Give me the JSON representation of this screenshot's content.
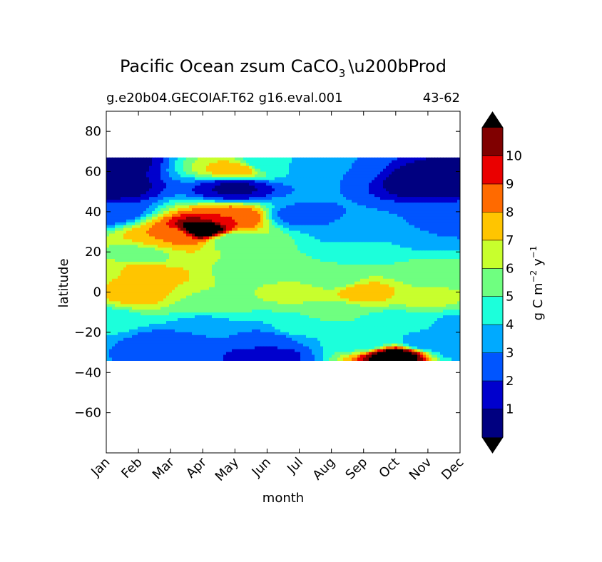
{
  "chart_data": {
    "type": "heatmap",
    "title": "Pacific Ocean zsum CaCO",
    "title_subscript": "3",
    "title_suffix": "Prod",
    "subtitle_left": "g.e20b04.GECOIAF.T62 g16.eval.001",
    "subtitle_right": "43-62",
    "xlabel": "month",
    "ylabel": "latitude",
    "x_ticks": [
      "Jan",
      "Feb",
      "Mar",
      "Apr",
      "May",
      "Jun",
      "Jul",
      "Aug",
      "Sep",
      "Oct",
      "Nov",
      "Dec"
    ],
    "y_ticks": [
      80,
      60,
      40,
      20,
      0,
      -20,
      -40,
      -60
    ],
    "y_tick_labels": [
      "80",
      "60",
      "40",
      "20",
      "0",
      "−20",
      "−40",
      "−60"
    ],
    "ylim": [
      -80,
      90
    ],
    "data_lat_range": [
      -34,
      67
    ],
    "colorbar": {
      "label_main": "g C m",
      "label_exp1": "−2",
      "label_mid": " y",
      "label_exp2": "−1",
      "levels": [
        0,
        1,
        2,
        3,
        4,
        5,
        6,
        7,
        8,
        9,
        10,
        11
      ],
      "tick_labels": [
        "1",
        "2",
        "3",
        "4",
        "5",
        "6",
        "7",
        "8",
        "9",
        "10"
      ],
      "colors": [
        "#000080",
        "#0000cd",
        "#0055ff",
        "#00aaff",
        "#1cffdb",
        "#6fff80",
        "#c8ff2d",
        "#ffc500",
        "#ff6a00",
        "#ea0000",
        "#800000"
      ],
      "extend_low_color": "#000000",
      "extend_high_color": "#000000"
    },
    "field_nodes": [
      {
        "x": 0,
        "lat": 65,
        "v": 0.3
      },
      {
        "x": 5,
        "lat": 64,
        "v": 4.0
      },
      {
        "x": 4,
        "lat": 61,
        "v": 7.5
      },
      {
        "x": 7,
        "lat": 61,
        "v": 3.0
      },
      {
        "x": 4,
        "lat": 52,
        "v": 0.8
      },
      {
        "x": 0,
        "lat": 52,
        "v": 0.2
      },
      {
        "x": 10,
        "lat": 55,
        "v": 0.2
      },
      {
        "x": 0,
        "lat": 40,
        "v": 2.2
      },
      {
        "x": 3,
        "lat": 31,
        "v": 12.0
      },
      {
        "x": 2,
        "lat": 28,
        "v": 8.0
      },
      {
        "x": 4,
        "lat": 37,
        "v": 9.0
      },
      {
        "x": 4,
        "lat": 26,
        "v": 5.2
      },
      {
        "x": 6,
        "lat": 38,
        "v": 2.6
      },
      {
        "x": 8,
        "lat": 30,
        "v": 3.1
      },
      {
        "x": 10,
        "lat": 31,
        "v": 3.0
      },
      {
        "x": 11,
        "lat": 36,
        "v": 2.6
      },
      {
        "x": 8,
        "lat": 22,
        "v": 4.3
      },
      {
        "x": 1,
        "lat": 18,
        "v": 5.6
      },
      {
        "x": 1,
        "lat": 9,
        "v": 8.0
      },
      {
        "x": 0,
        "lat": 10,
        "v": 6.6
      },
      {
        "x": 5,
        "lat": 12,
        "v": 5.2
      },
      {
        "x": 7,
        "lat": 6,
        "v": 5.3
      },
      {
        "x": 10,
        "lat": 10,
        "v": 5.2
      },
      {
        "x": 1,
        "lat": -2,
        "v": 7.3
      },
      {
        "x": 6,
        "lat": 0,
        "v": 6.4
      },
      {
        "x": 8,
        "lat": 0,
        "v": 7.6
      },
      {
        "x": 10,
        "lat": -3,
        "v": 6.2
      },
      {
        "x": 3,
        "lat": -7,
        "v": 5.8
      },
      {
        "x": 7,
        "lat": -10,
        "v": 5.2
      },
      {
        "x": 0,
        "lat": -13,
        "v": 4.5
      },
      {
        "x": 3,
        "lat": -15,
        "v": 3.8
      },
      {
        "x": 6,
        "lat": -18,
        "v": 4.2
      },
      {
        "x": 9,
        "lat": -15,
        "v": 4.5
      },
      {
        "x": 11,
        "lat": -16,
        "v": 3.8
      },
      {
        "x": 2,
        "lat": -25,
        "v": 2.3
      },
      {
        "x": 5,
        "lat": -31,
        "v": 1.5
      },
      {
        "x": 5,
        "lat": -24,
        "v": 2.6
      },
      {
        "x": 8,
        "lat": -25,
        "v": 4.3
      },
      {
        "x": 9,
        "lat": -32,
        "v": 12.0
      },
      {
        "x": 10,
        "lat": -25,
        "v": 3.2
      },
      {
        "x": 11,
        "lat": -29,
        "v": 3.6
      }
    ]
  }
}
